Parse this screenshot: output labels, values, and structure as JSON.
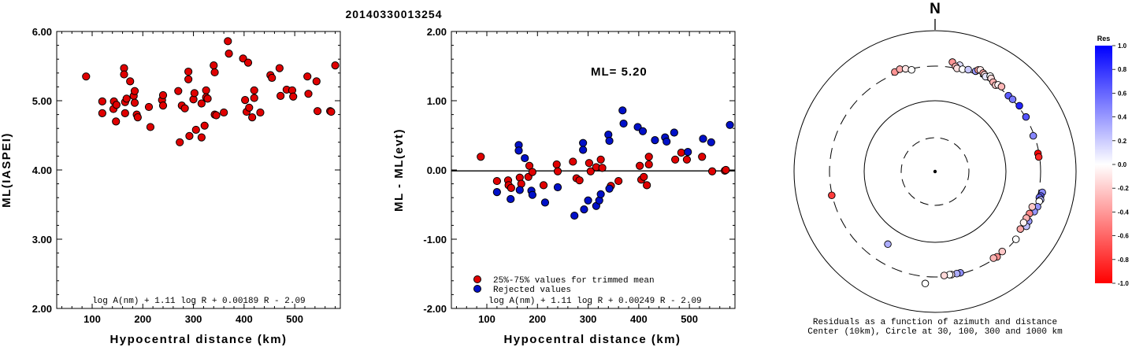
{
  "title": "20140330013254",
  "chart_data": [
    {
      "type": "scatter",
      "ylabel": "ML(IASPEI)",
      "xlabel": "Hypocentral distance (km)",
      "xlim": [
        30,
        590
      ],
      "ylim": [
        2.0,
        6.0
      ],
      "xticks": [
        "100",
        "200",
        "300",
        "400",
        "500"
      ],
      "yticks": [
        "2.00",
        "3.00",
        "4.00",
        "5.00",
        "6.00"
      ],
      "formula": "log A(nm) + 1.11 log R + 0.00189 R - 2.09",
      "marker_color": "#e00000",
      "points": [
        [
          88,
          5.35
        ],
        [
          120,
          4.99
        ],
        [
          120,
          4.82
        ],
        [
          142,
          4.88
        ],
        [
          143,
          4.99
        ],
        [
          147,
          4.7
        ],
        [
          148,
          4.94
        ],
        [
          163,
          5.47
        ],
        [
          163,
          5.38
        ],
        [
          165,
          4.98
        ],
        [
          165,
          4.82
        ],
        [
          168,
          5.03
        ],
        [
          175,
          5.28
        ],
        [
          182,
          5.07
        ],
        [
          184,
          5.14
        ],
        [
          184,
          4.97
        ],
        [
          188,
          4.8
        ],
        [
          190,
          4.76
        ],
        [
          212,
          4.91
        ],
        [
          215,
          4.62
        ],
        [
          238,
          5.01
        ],
        [
          240,
          5.08
        ],
        [
          240,
          4.93
        ],
        [
          270,
          5.14
        ],
        [
          273,
          4.4
        ],
        [
          277,
          4.93
        ],
        [
          283,
          4.89
        ],
        [
          290,
          5.42
        ],
        [
          290,
          5.31
        ],
        [
          292,
          4.49
        ],
        [
          300,
          5.02
        ],
        [
          302,
          5.11
        ],
        [
          305,
          4.58
        ],
        [
          316,
          4.96
        ],
        [
          316,
          4.47
        ],
        [
          322,
          4.64
        ],
        [
          325,
          5.15
        ],
        [
          325,
          5.05
        ],
        [
          328,
          5.03
        ],
        [
          340,
          5.51
        ],
        [
          342,
          5.41
        ],
        [
          342,
          4.8
        ],
        [
          345,
          4.79
        ],
        [
          360,
          4.83
        ],
        [
          368,
          5.86
        ],
        [
          370,
          5.68
        ],
        [
          398,
          5.61
        ],
        [
          402,
          5.01
        ],
        [
          405,
          4.84
        ],
        [
          408,
          5.55
        ],
        [
          410,
          4.9
        ],
        [
          416,
          4.76
        ],
        [
          420,
          5.15
        ],
        [
          420,
          5.04
        ],
        [
          432,
          4.83
        ],
        [
          452,
          5.37
        ],
        [
          455,
          5.33
        ],
        [
          470,
          5.47
        ],
        [
          472,
          5.07
        ],
        [
          484,
          5.16
        ],
        [
          495,
          5.15
        ],
        [
          497,
          5.06
        ],
        [
          525,
          5.35
        ],
        [
          527,
          5.1
        ],
        [
          543,
          5.28
        ],
        [
          545,
          4.85
        ],
        [
          570,
          4.85
        ],
        [
          572,
          4.84
        ],
        [
          580,
          5.51
        ]
      ]
    },
    {
      "type": "scatter",
      "ylabel": "ML - ML(evt)",
      "xlabel": "Hypocentral distance (km)",
      "xlim": [
        30,
        590
      ],
      "ylim": [
        -2.0,
        2.0
      ],
      "xticks": [
        "100",
        "200",
        "300",
        "400",
        "500"
      ],
      "yticks": [
        "-2.00",
        "-1.00",
        "0.00",
        "1.00",
        "2.00"
      ],
      "annotation": "ML= 5.20",
      "formula": "log A(nm) + 1.11 log R + 0.00249 R - 2.09",
      "legend": [
        {
          "label": "25%-75% values for trimmed mean",
          "color": "#e00000"
        },
        {
          "label": "Rejected values",
          "color": "#0010c8"
        }
      ],
      "series": [
        {
          "name": "25%-75% values for trimmed mean",
          "color": "#e00000",
          "points": [
            [
              88,
              0.19
            ],
            [
              120,
              -0.16
            ],
            [
              142,
              -0.15
            ],
            [
              143,
              -0.22
            ],
            [
              148,
              -0.26
            ],
            [
              165,
              -0.11
            ],
            [
              168,
              -0.2
            ],
            [
              182,
              -0.1
            ],
            [
              184,
              0.06
            ],
            [
              190,
              -0.03
            ],
            [
              212,
              -0.22
            ],
            [
              238,
              0.08
            ],
            [
              240,
              -0.02
            ],
            [
              270,
              0.12
            ],
            [
              277,
              -0.12
            ],
            [
              283,
              -0.15
            ],
            [
              302,
              0.1
            ],
            [
              305,
              -0.02
            ],
            [
              316,
              0.04
            ],
            [
              325,
              0.15
            ],
            [
              328,
              0.03
            ],
            [
              345,
              -0.23
            ],
            [
              360,
              -0.16
            ],
            [
              402,
              0.06
            ],
            [
              405,
              -0.14
            ],
            [
              410,
              -0.1
            ],
            [
              416,
              -0.22
            ],
            [
              420,
              0.19
            ],
            [
              420,
              0.08
            ],
            [
              472,
              0.15
            ],
            [
              484,
              0.25
            ],
            [
              495,
              0.15
            ],
            [
              525,
              0.19
            ],
            [
              545,
              -0.02
            ],
            [
              570,
              -0.01
            ],
            [
              572,
              0.0
            ]
          ]
        },
        {
          "name": "Rejected values",
          "color": "#0010c8",
          "points": [
            [
              120,
              -0.32
            ],
            [
              147,
              -0.42
            ],
            [
              163,
              0.36
            ],
            [
              163,
              0.28
            ],
            [
              165,
              -0.29
            ],
            [
              175,
              0.17
            ],
            [
              188,
              -0.3
            ],
            [
              190,
              -0.36
            ],
            [
              215,
              -0.47
            ],
            [
              240,
              -0.25
            ],
            [
              273,
              -0.66
            ],
            [
              290,
              0.39
            ],
            [
              290,
              0.29
            ],
            [
              292,
              -0.57
            ],
            [
              300,
              -0.44
            ],
            [
              316,
              -0.52
            ],
            [
              322,
              -0.44
            ],
            [
              325,
              -0.35
            ],
            [
              340,
              0.51
            ],
            [
              342,
              0.42
            ],
            [
              342,
              -0.27
            ],
            [
              368,
              0.86
            ],
            [
              370,
              0.67
            ],
            [
              398,
              0.62
            ],
            [
              408,
              0.56
            ],
            [
              432,
              0.43
            ],
            [
              452,
              0.47
            ],
            [
              455,
              0.41
            ],
            [
              470,
              0.54
            ],
            [
              497,
              0.26
            ],
            [
              527,
              0.45
            ],
            [
              543,
              0.4
            ],
            [
              580,
              0.65
            ]
          ]
        }
      ]
    },
    {
      "type": "polar-scatter",
      "north_label": "N",
      "caption_line1": "Residuals as a function of azimuth and distance",
      "caption_line2": "Center (10km), Circle at 30, 100, 300 and 1000 km",
      "rings_km": [
        30,
        100,
        300,
        1000
      ],
      "colorbar": {
        "title": "Res",
        "ticks": [
          "1.0",
          "0.8",
          "0.6",
          "0.4",
          "0.2",
          "0.0",
          "-0.2",
          "-0.4",
          "-0.6",
          "-0.8",
          "-1.0"
        ],
        "max_color": "#0000ff",
        "zero_color": "#ffffff",
        "min_color": "#ff0000"
      },
      "points": [
        {
          "az": 13,
          "dist": 340,
          "res": 0.13
        },
        {
          "az": 9,
          "dist": 360,
          "res": -0.41
        },
        {
          "az": 11,
          "dist": 318,
          "res": -0.3
        },
        {
          "az": 12,
          "dist": 300,
          "res": -0.12
        },
        {
          "az": 15,
          "dist": 305,
          "res": 0.0
        },
        {
          "az": 18,
          "dist": 318,
          "res": 0.22
        },
        {
          "az": 22,
          "dist": 330,
          "res": 0.4
        },
        {
          "az": 23,
          "dist": 355,
          "res": -0.37
        },
        {
          "az": 24,
          "dist": 365,
          "res": -0.1
        },
        {
          "az": 26,
          "dist": 345,
          "res": -0.38
        },
        {
          "az": 27,
          "dist": 335,
          "res": -0.14
        },
        {
          "az": 28,
          "dist": 322,
          "res": 0.1
        },
        {
          "az": 30,
          "dist": 352,
          "res": 0.0
        },
        {
          "az": 31,
          "dist": 335,
          "res": -0.14
        },
        {
          "az": 33,
          "dist": 312,
          "res": -0.31
        },
        {
          "az": 35,
          "dist": 300,
          "res": -0.2
        },
        {
          "az": 36,
          "dist": 318,
          "res": -0.05
        },
        {
          "az": 38,
          "dist": 325,
          "res": -0.28
        },
        {
          "az": 44,
          "dist": 300,
          "res": 0.64
        },
        {
          "az": 47,
          "dist": 305,
          "res": 0.52
        },
        {
          "az": 52,
          "dist": 315,
          "res": 0.86
        },
        {
          "az": 59,
          "dist": 305,
          "res": 0.67
        },
        {
          "az": 70,
          "dist": 290,
          "res": 0.47
        },
        {
          "az": 80,
          "dist": 290,
          "res": -1.0
        },
        {
          "az": 82,
          "dist": 292,
          "res": -0.85
        },
        {
          "az": 101,
          "dist": 340,
          "res": 0.45
        },
        {
          "az": 103,
          "dist": 330,
          "res": 0.62
        },
        {
          "az": 104,
          "dist": 320,
          "res": 0.56
        },
        {
          "az": 105,
          "dist": 340,
          "res": 0.3
        },
        {
          "az": 106,
          "dist": 330,
          "res": 0.0
        },
        {
          "az": 109,
          "dist": 330,
          "res": 0.42
        },
        {
          "az": 112,
          "dist": 315,
          "res": 0.41
        },
        {
          "az": 118,
          "dist": 305,
          "res": 0.4
        },
        {
          "az": 121,
          "dist": 310,
          "res": 0.25
        },
        {
          "az": 110,
          "dist": 280,
          "res": -0.22
        },
        {
          "az": 114,
          "dist": 280,
          "res": -0.47
        },
        {
          "az": 117,
          "dist": 272,
          "res": -0.3
        },
        {
          "az": 120,
          "dist": 270,
          "res": -0.05
        },
        {
          "az": 124,
          "dist": 276,
          "res": -0.35
        },
        {
          "az": 130,
          "dist": 300,
          "res": 0.0
        },
        {
          "az": 140,
          "dist": 290,
          "res": -0.22
        },
        {
          "az": 144,
          "dist": 300,
          "res": -0.44
        },
        {
          "az": 146,
          "dist": 290,
          "res": -0.3
        },
        {
          "az": 166,
          "dist": 290,
          "res": 0.44
        },
        {
          "az": 168,
          "dist": 290,
          "res": 0.32
        },
        {
          "az": 171,
          "dist": 290,
          "res": -0.1
        },
        {
          "az": 172,
          "dist": 288,
          "res": 0.0
        },
        {
          "az": 175,
          "dist": 290,
          "res": -0.15
        },
        {
          "az": 185,
          "dist": 380,
          "res": 0.0
        },
        {
          "az": 213,
          "dist": 165,
          "res": 0.32
        },
        {
          "az": 257,
          "dist": 305,
          "res": -0.77
        },
        {
          "az": 338,
          "dist": 320,
          "res": -0.42
        },
        {
          "az": 341,
          "dist": 330,
          "res": -0.33
        },
        {
          "az": 344,
          "dist": 315,
          "res": -0.1
        },
        {
          "az": 347,
          "dist": 290,
          "res": 0.0
        }
      ]
    }
  ]
}
